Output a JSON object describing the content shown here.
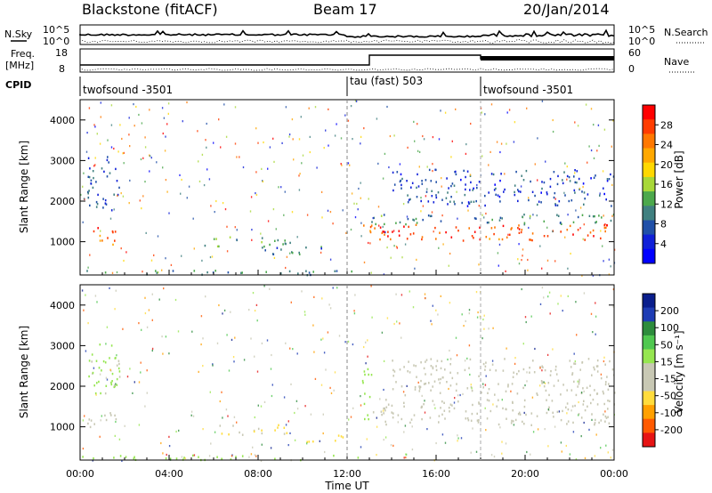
{
  "header": {
    "title": "Blackstone (fitACF)",
    "beam": "Beam 17",
    "date": "20/Jan/2014"
  },
  "top_panels": {
    "nsky_label": "N.Sky",
    "nsky_ticks": [
      "10^5",
      "10^0"
    ],
    "nsearch_label": "N.Search",
    "nsearch_ticks": [
      "10^5",
      "10^0"
    ],
    "freq_label_1": "Freq.",
    "freq_label_2": "[MHz]",
    "freq_ticks": [
      "18",
      "8"
    ],
    "nave_label": "Nave",
    "nave_ticks": [
      "60",
      "0"
    ],
    "cpid_label": "CPID",
    "cpid_segments": [
      {
        "name": "twofsound -3501",
        "start_hour": 0
      },
      {
        "name": "tau (fast) 503",
        "start_hour": 12
      },
      {
        "name": "twofsound -3501",
        "start_hour": 18
      }
    ]
  },
  "axes": {
    "xlabel": "Time UT",
    "xticks": [
      "00:00",
      "04:00",
      "08:00",
      "12:00",
      "16:00",
      "20:00",
      "00:00"
    ],
    "ylabel_power": "Slant Range [km]",
    "ylabel_velocity": "Slant Range [km]",
    "yticks": [
      "4000",
      "3000",
      "2000",
      "1000"
    ]
  },
  "colorbars": {
    "power": {
      "label": "Power [dB]",
      "ticks": [
        "28",
        "24",
        "20",
        "16",
        "12",
        "8",
        "4"
      ],
      "colors": [
        "#ff0000",
        "#ff3c00",
        "#ff7800",
        "#ffa800",
        "#ffd800",
        "#a8d838",
        "#4ca84c",
        "#408080",
        "#2050a8",
        "#1020d8",
        "#0000ff"
      ]
    },
    "velocity": {
      "label": "Velocity [m s⁻¹]",
      "ticks": [
        "200",
        "100",
        "50",
        "15",
        "-15",
        "-50",
        "-100",
        "-200"
      ],
      "colors": [
        "#0a1e8c",
        "#1e3cb4",
        "#2d8c3c",
        "#50c850",
        "#96e650",
        "#c8c8b4",
        "#c8c8b4",
        "#ffdc3c",
        "#ffa000",
        "#ff5a00",
        "#e61414"
      ]
    }
  },
  "chart_data": [
    {
      "type": "heatmap",
      "title": "Blackstone (fitACF)  Beam 17  20/Jan/2014",
      "xlabel": "Time UT",
      "ylabel": "Slant Range [km]",
      "xlim": [
        0,
        24
      ],
      "ylim": [
        180,
        4500
      ],
      "colorbar": "Power [dB]",
      "zlim": [
        0,
        30
      ],
      "bands": [
        {
          "t0": 0.2,
          "t1": 1.6,
          "r0": 950,
          "r1": 1400,
          "value": 26
        },
        {
          "t0": 0.3,
          "t1": 1.8,
          "r0": 1800,
          "r1": 3200,
          "value": 6
        },
        {
          "t0": 5.5,
          "t1": 9.5,
          "r0": 900,
          "r1": 1150,
          "value": 12
        },
        {
          "t0": 8.0,
          "t1": 11.6,
          "r0": 700,
          "r1": 900,
          "value": 8
        },
        {
          "t0": 12.7,
          "t1": 24.0,
          "r0": 1050,
          "r1": 1450,
          "value": 26
        },
        {
          "t0": 13.0,
          "t1": 24.0,
          "r0": 1450,
          "r1": 1700,
          "value": 10
        },
        {
          "t0": 14.0,
          "t1": 24.0,
          "r0": 1900,
          "r1": 2800,
          "value": 5
        },
        {
          "t0": 0.0,
          "t1": 12.5,
          "r0": 200,
          "r1": 320,
          "value": 10
        }
      ]
    },
    {
      "type": "heatmap",
      "title": "",
      "xlabel": "Time UT",
      "ylabel": "Slant Range [km]",
      "xlim": [
        0,
        24
      ],
      "ylim": [
        180,
        4500
      ],
      "colorbar": "Velocity [m s-1]",
      "zlim": [
        -200,
        200
      ],
      "bands": [
        {
          "t0": 0.2,
          "t1": 1.6,
          "r0": 950,
          "r1": 1400,
          "value": 0
        },
        {
          "t0": 0.3,
          "t1": 1.8,
          "r0": 1800,
          "r1": 3200,
          "value": 30
        },
        {
          "t0": 6.0,
          "t1": 9.5,
          "r0": 820,
          "r1": 1080,
          "value": -60
        },
        {
          "t0": 9.5,
          "t1": 11.8,
          "r0": 650,
          "r1": 820,
          "value": -80
        },
        {
          "t0": 12.6,
          "t1": 13.1,
          "r0": 1100,
          "r1": 2500,
          "value": 40
        },
        {
          "t0": 13.1,
          "t1": 24.0,
          "r0": 1050,
          "r1": 1700,
          "value": 0
        },
        {
          "t0": 14.0,
          "t1": 24.0,
          "r0": 1800,
          "r1": 2700,
          "value": 0
        },
        {
          "t0": 0.0,
          "t1": 12.5,
          "r0": 200,
          "r1": 320,
          "value": 40
        }
      ]
    }
  ]
}
